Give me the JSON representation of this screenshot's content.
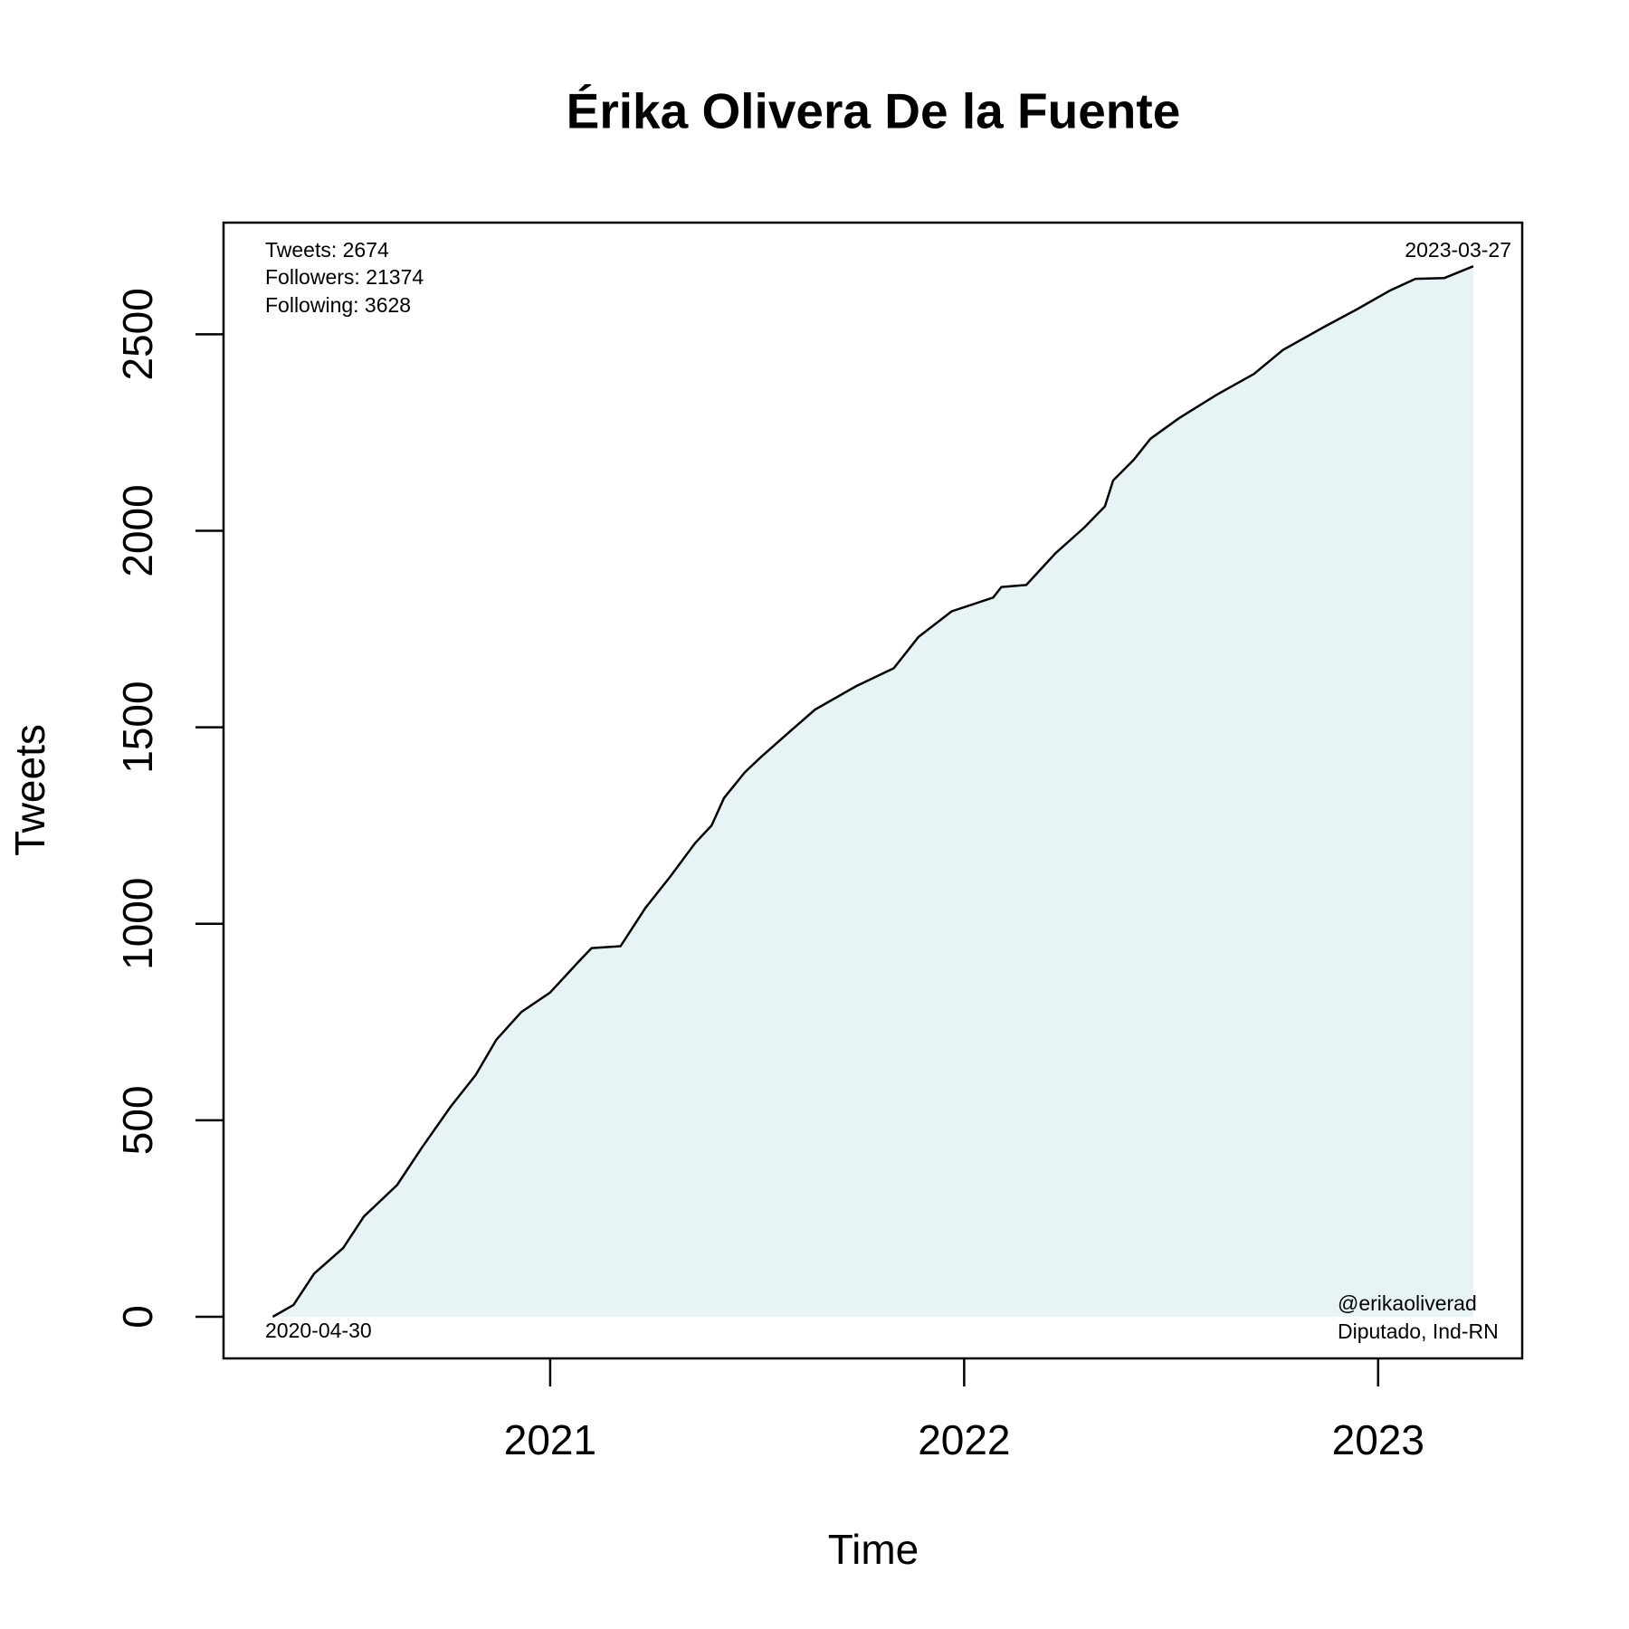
{
  "chart_data": {
    "type": "area",
    "title": "Érika Olivera De la Fuente",
    "x_label": "Time",
    "y_label": "Tweets",
    "xlim": [
      2020.211,
      2023.348
    ],
    "ylim": [
      -106,
      2784
    ],
    "xticks": [
      2021,
      2022,
      2023
    ],
    "yticks": [
      0,
      500,
      1000,
      1500,
      2000,
      2500
    ],
    "line_color": "#000000",
    "fill_color": "#e8f3f6",
    "x": [
      2020.33,
      2020.38,
      2020.43,
      2020.5,
      2020.55,
      2020.63,
      2020.69,
      2020.76,
      2020.82,
      2020.87,
      2020.93,
      2021.0,
      2021.07,
      2021.1,
      2021.17,
      2021.23,
      2021.29,
      2021.35,
      2021.39,
      2021.42,
      2021.47,
      2021.51,
      2021.58,
      2021.64,
      2021.74,
      2021.83,
      2021.89,
      2021.97,
      2022.07,
      2022.09,
      2022.15,
      2022.22,
      2022.29,
      2022.34,
      2022.36,
      2022.41,
      2022.45,
      2022.52,
      2022.61,
      2022.7,
      2022.77,
      2022.87,
      2022.95,
      2023.03,
      2023.09,
      2023.16,
      2023.23
    ],
    "values": [
      0,
      30,
      110,
      175,
      255,
      335,
      430,
      535,
      615,
      705,
      775,
      825,
      905,
      938,
      943,
      1040,
      1120,
      1205,
      1250,
      1320,
      1385,
      1425,
      1490,
      1545,
      1605,
      1650,
      1730,
      1795,
      1830,
      1857,
      1862,
      1942,
      2008,
      2062,
      2128,
      2181,
      2234,
      2287,
      2346,
      2399,
      2460,
      2519,
      2564,
      2612,
      2641,
      2643,
      2673
    ],
    "annotations": [
      "Tweets: 2674",
      "Followers: 21374",
      "Following: 3628",
      "2023-03-27",
      "2020-04-30",
      "@erikaoliverad",
      "Diputado, Ind-RN"
    ]
  }
}
